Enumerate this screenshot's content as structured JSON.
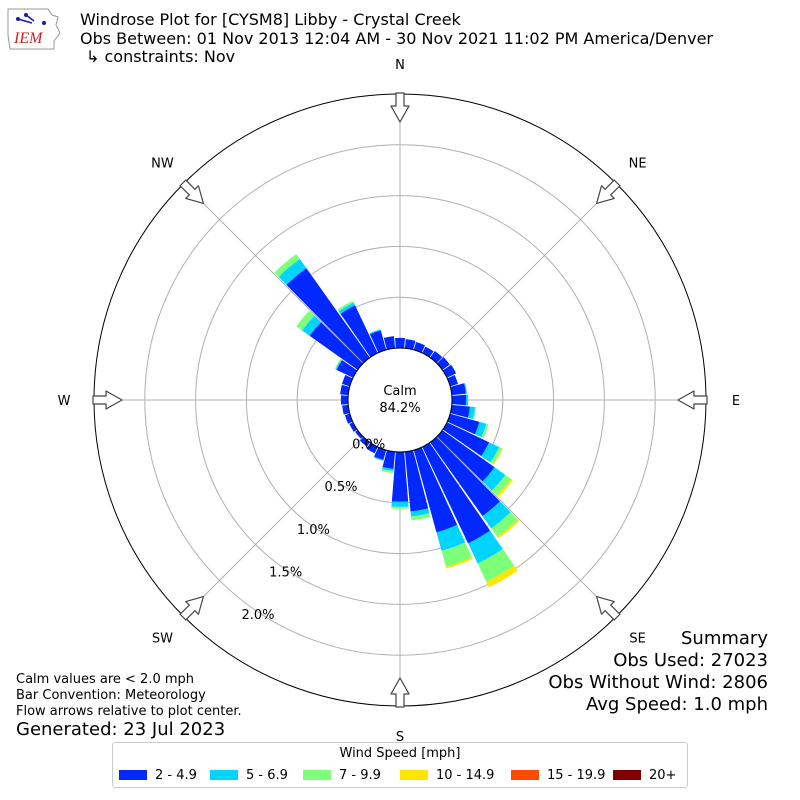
{
  "header": {
    "title": "Windrose Plot for [CYSM8] Libby - Crystal Creek",
    "subtitle": "Obs Between: 01 Nov 2013 12:04 AM - 30 Nov 2021 11:02 PM America/Denver",
    "constraints": "↳ constraints: Nov",
    "logo_text": "IEM"
  },
  "notes": {
    "line1": "Calm values are < 2.0 mph",
    "line2": "Bar Convention: Meteorology",
    "line3": "Flow arrows relative to plot center.",
    "generated": "Generated: 23 Jul 2023"
  },
  "summary": {
    "title": "Summary",
    "obs_used": "Obs Used: 27023",
    "obs_without_wind": "Obs Without Wind: 2806",
    "avg_speed": "Avg Speed: 1.0 mph"
  },
  "legend": {
    "title": "Wind Speed [mph]",
    "items": [
      {
        "label": "2 - 4.9",
        "color": "#0028ff"
      },
      {
        "label": "5 - 6.9",
        "color": "#00d4ff"
      },
      {
        "label": "7 - 9.9",
        "color": "#7dff7a"
      },
      {
        "label": "10 - 14.9",
        "color": "#ffe500"
      },
      {
        "label": "15 - 19.9",
        "color": "#ff4a00"
      },
      {
        "label": "20+",
        "color": "#800000"
      }
    ]
  },
  "chart_data": {
    "type": "windrose",
    "calm_label": "Calm",
    "calm_value": "84.2%",
    "directions": [
      "N",
      "NE",
      "E",
      "SE",
      "S",
      "SW",
      "W",
      "NW"
    ],
    "radial_tick_labels": [
      "0.0%",
      "0.5%",
      "1.0%",
      "1.5%",
      "2.0%"
    ],
    "radial_ticks": [
      0,
      0.5,
      1.0,
      1.5,
      2.0
    ],
    "rmax": 2.5,
    "bin_width_deg": 10,
    "speed_bins": [
      "2 - 4.9",
      "5 - 6.9",
      "7 - 9.9",
      "10 - 14.9",
      "15 - 19.9",
      "20+"
    ],
    "colors": [
      "#0028ff",
      "#00d4ff",
      "#7dff7a",
      "#ffe500",
      "#ff4a00",
      "#800000"
    ],
    "sectors": [
      {
        "dir": 0,
        "values": [
          0.1,
          0.0,
          0.0,
          0.0,
          0.0,
          0.0
        ]
      },
      {
        "dir": 10,
        "values": [
          0.09,
          0.0,
          0.0,
          0.0,
          0.0,
          0.0
        ]
      },
      {
        "dir": 20,
        "values": [
          0.08,
          0.0,
          0.0,
          0.0,
          0.0,
          0.0
        ]
      },
      {
        "dir": 30,
        "values": [
          0.07,
          0.0,
          0.0,
          0.0,
          0.0,
          0.0
        ]
      },
      {
        "dir": 40,
        "values": [
          0.08,
          0.0,
          0.0,
          0.0,
          0.0,
          0.0
        ]
      },
      {
        "dir": 50,
        "values": [
          0.09,
          0.0,
          0.0,
          0.0,
          0.0,
          0.0
        ]
      },
      {
        "dir": 60,
        "values": [
          0.1,
          0.0,
          0.0,
          0.0,
          0.0,
          0.0
        ]
      },
      {
        "dir": 70,
        "values": [
          0.08,
          0.0,
          0.0,
          0.0,
          0.0,
          0.0
        ]
      },
      {
        "dir": 80,
        "values": [
          0.14,
          0.01,
          0.0,
          0.0,
          0.0,
          0.0
        ]
      },
      {
        "dir": 90,
        "values": [
          0.14,
          0.02,
          0.0,
          0.0,
          0.0,
          0.0
        ]
      },
      {
        "dir": 100,
        "values": [
          0.18,
          0.05,
          0.01,
          0.0,
          0.0,
          0.0
        ]
      },
      {
        "dir": 110,
        "values": [
          0.3,
          0.07,
          0.02,
          0.0,
          0.0,
          0.0
        ]
      },
      {
        "dir": 120,
        "values": [
          0.46,
          0.11,
          0.03,
          0.01,
          0.0,
          0.0
        ]
      },
      {
        "dir": 130,
        "values": [
          0.63,
          0.13,
          0.07,
          0.02,
          0.0,
          0.0
        ]
      },
      {
        "dir": 140,
        "values": [
          0.89,
          0.15,
          0.1,
          0.02,
          0.0,
          0.0
        ]
      },
      {
        "dir": 150,
        "values": [
          1.05,
          0.22,
          0.2,
          0.06,
          0.0,
          0.0
        ]
      },
      {
        "dir": 160,
        "values": [
          0.84,
          0.19,
          0.16,
          0.02,
          0.0,
          0.0
        ]
      },
      {
        "dir": 170,
        "values": [
          0.59,
          0.05,
          0.04,
          0.0,
          0.0,
          0.0
        ]
      },
      {
        "dir": 180,
        "values": [
          0.49,
          0.05,
          0.02,
          0.0,
          0.0,
          0.0
        ]
      },
      {
        "dir": 190,
        "values": [
          0.17,
          0.02,
          0.02,
          0.0,
          0.0,
          0.0
        ]
      },
      {
        "dir": 200,
        "values": [
          0.1,
          0.01,
          0.0,
          0.0,
          0.0,
          0.0
        ]
      },
      {
        "dir": 210,
        "values": [
          0.07,
          0.0,
          0.0,
          0.0,
          0.0,
          0.0
        ]
      },
      {
        "dir": 220,
        "values": [
          0.05,
          0.0,
          0.0,
          0.0,
          0.0,
          0.0
        ]
      },
      {
        "dir": 230,
        "values": [
          0.03,
          0.0,
          0.0,
          0.0,
          0.0,
          0.0
        ]
      },
      {
        "dir": 240,
        "values": [
          0.04,
          0.0,
          0.0,
          0.0,
          0.0,
          0.0
        ]
      },
      {
        "dir": 250,
        "values": [
          0.05,
          0.0,
          0.0,
          0.0,
          0.0,
          0.0
        ]
      },
      {
        "dir": 260,
        "values": [
          0.06,
          0.0,
          0.0,
          0.0,
          0.0,
          0.0
        ]
      },
      {
        "dir": 270,
        "values": [
          0.07,
          0.0,
          0.0,
          0.0,
          0.0,
          0.0
        ]
      },
      {
        "dir": 280,
        "values": [
          0.08,
          0.0,
          0.0,
          0.0,
          0.0,
          0.0
        ]
      },
      {
        "dir": 290,
        "values": [
          0.08,
          0.0,
          0.0,
          0.0,
          0.0,
          0.0
        ]
      },
      {
        "dir": 300,
        "values": [
          0.18,
          0.01,
          0.01,
          0.0,
          0.0,
          0.0
        ]
      },
      {
        "dir": 310,
        "values": [
          0.58,
          0.09,
          0.07,
          0.0,
          0.0,
          0.0
        ]
      },
      {
        "dir": 320,
        "values": [
          1.08,
          0.11,
          0.06,
          0.0,
          0.0,
          0.0
        ]
      },
      {
        "dir": 330,
        "values": [
          0.52,
          0.03,
          0.02,
          0.0,
          0.0,
          0.0
        ]
      },
      {
        "dir": 340,
        "values": [
          0.2,
          0.01,
          0.0,
          0.0,
          0.0,
          0.0
        ]
      },
      {
        "dir": 350,
        "values": [
          0.12,
          0.0,
          0.0,
          0.0,
          0.0,
          0.0
        ]
      }
    ]
  }
}
